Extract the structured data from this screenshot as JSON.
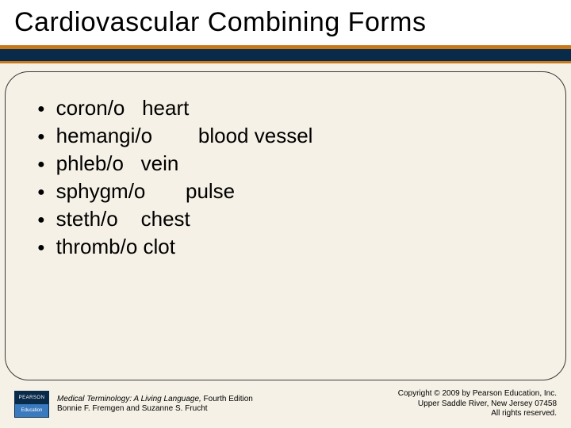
{
  "header": {
    "title": "Cardiovascular Combining Forms"
  },
  "terms": [
    {
      "form": "coron/o",
      "meaning": "heart"
    },
    {
      "form": "hemangi/o",
      "meaning": "blood vessel"
    },
    {
      "form": "phleb/o",
      "meaning": "vein"
    },
    {
      "form": "sphygm/o",
      "meaning": "pulse"
    },
    {
      "form": "steth/o",
      "meaning": "chest"
    },
    {
      "form": "thromb/o",
      "meaning": "clot"
    }
  ],
  "footer": {
    "logo_top": "PEARSON",
    "logo_bottom": "Education",
    "book_title": "Medical Terminology: A Living Language,",
    "book_edition": " Fourth Edition",
    "authors": "Bonnie F. Fremgen and Suzanne S. Frucht",
    "copyright": "Copyright © 2009 by Pearson Education, Inc.",
    "address": "Upper Saddle River, New Jersey 07458",
    "rights": "All rights reserved."
  },
  "colors": {
    "background": "#f5f1e6",
    "accent_orange": "#c87a1a",
    "navy": "#0a2a4a"
  }
}
